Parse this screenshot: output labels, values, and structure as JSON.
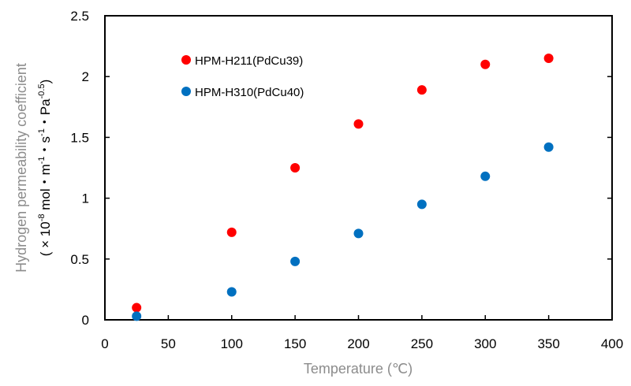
{
  "chart_data": {
    "type": "scatter",
    "title": "",
    "xlabel": "Temperature (℃)",
    "ylabel": "Hydrogen permeability coefficient",
    "ylabel_units": "(×10-8 mol・m-1・s-1・Pa-0.5)",
    "xlim": [
      0,
      400
    ],
    "ylim": [
      0,
      2.5
    ],
    "x_ticks": [
      0,
      50,
      100,
      150,
      200,
      250,
      300,
      350,
      400
    ],
    "y_ticks": [
      0,
      0.5,
      1,
      1.5,
      2,
      2.5
    ],
    "x_tick_labels": [
      "0",
      "50",
      "100",
      "150",
      "200",
      "250",
      "300",
      "350",
      "400"
    ],
    "y_tick_labels": [
      "0",
      "0.5",
      "1",
      "1.5",
      "2",
      "2.5"
    ],
    "grid": false,
    "legend_position": "upper-left inside",
    "series": [
      {
        "name": "HPM-H211(PdCu39)",
        "color": "#ff0000",
        "x": [
          25,
          100,
          150,
          200,
          250,
          300,
          350
        ],
        "y": [
          0.1,
          0.72,
          1.25,
          1.61,
          1.89,
          2.1,
          2.15
        ]
      },
      {
        "name": "HPM-H310(PdCu40)",
        "color": "#0070c0",
        "x": [
          25,
          100,
          150,
          200,
          250,
          300,
          350
        ],
        "y": [
          0.03,
          0.23,
          0.48,
          0.71,
          0.95,
          1.18,
          1.42
        ]
      }
    ]
  },
  "labels": {
    "xlabel": "Temperature (℃)",
    "ylabel_line1": "Hydrogen permeability coefficient",
    "ylabel_unit_prefix": "( × 10",
    "ylabel_exp1": "-8",
    "ylabel_mid1": " mol・m",
    "ylabel_exp2": "-1",
    "ylabel_mid2": "・s",
    "ylabel_exp3": "-1",
    "ylabel_mid3": "・Pa",
    "ylabel_exp4": "-0.5",
    "ylabel_suffix": ")"
  },
  "legend": {
    "items": [
      {
        "label": "HPM-H211(PdCu39)",
        "color": "#ff0000"
      },
      {
        "label": "HPM-H310(PdCu40)",
        "color": "#0070c0"
      }
    ]
  }
}
